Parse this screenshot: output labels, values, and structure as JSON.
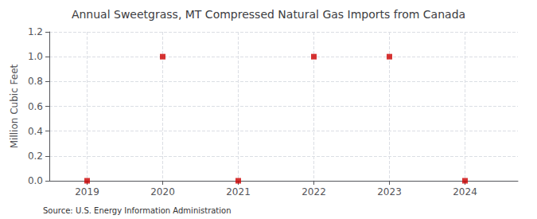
{
  "chart_data": {
    "type": "scatter",
    "title": "Annual Sweetgrass, MT Compressed Natural Gas Imports from Canada",
    "ylabel": "Million Cubic Feet",
    "annotation": "Source: U.S. Energy Information Administration",
    "x": [
      2019,
      2020,
      2021,
      2022,
      2023,
      2024
    ],
    "values": [
      0.0,
      1.0,
      0.0,
      1.0,
      1.0,
      0.0
    ],
    "color": "#cc0000",
    "marker": "square",
    "xlim": [
      2018.5,
      2024.7
    ],
    "xticks": [
      2019,
      2020,
      2021,
      2022,
      2023,
      2024
    ],
    "ylim": [
      0.0,
      1.2
    ],
    "yticks": [
      {
        "value": 0.0,
        "label": "0.0"
      },
      0.2,
      0.4,
      0.6,
      0.8,
      {
        "value": 1.0,
        "label": "1.0"
      },
      1.2
    ],
    "grid": true
  }
}
